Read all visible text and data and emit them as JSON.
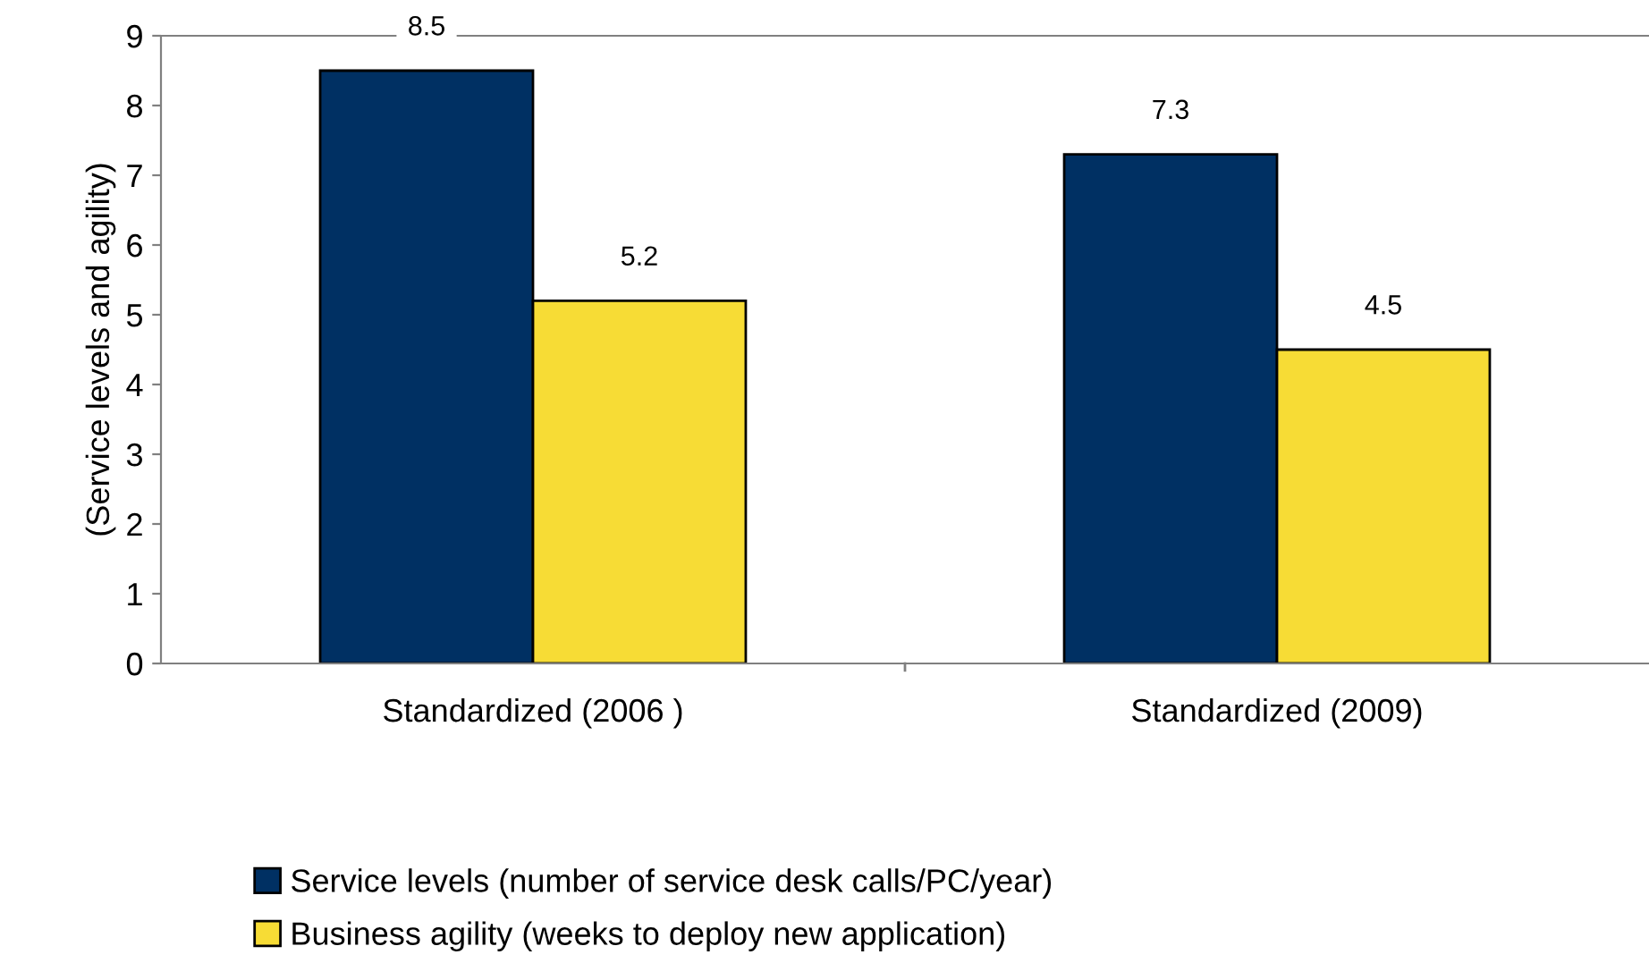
{
  "chart_data": {
    "type": "bar",
    "ylabel": "(Service levels and agility)",
    "categories": [
      "Standardized (2006 )",
      "Standardized (2009)"
    ],
    "series": [
      {
        "name": "Service levels (number of service desk calls/PC/year)",
        "color": "#003063",
        "values": [
          8.5,
          7.3
        ]
      },
      {
        "name": "Business agility (weeks to deploy new application)",
        "color": "#f7dc35",
        "values": [
          5.2,
          4.5
        ]
      }
    ],
    "ylim": [
      0,
      9
    ],
    "yticks": [
      0,
      1,
      2,
      3,
      4,
      5,
      6,
      7,
      8,
      9
    ],
    "grid": false,
    "legend": "bottom",
    "data_labels": true
  }
}
